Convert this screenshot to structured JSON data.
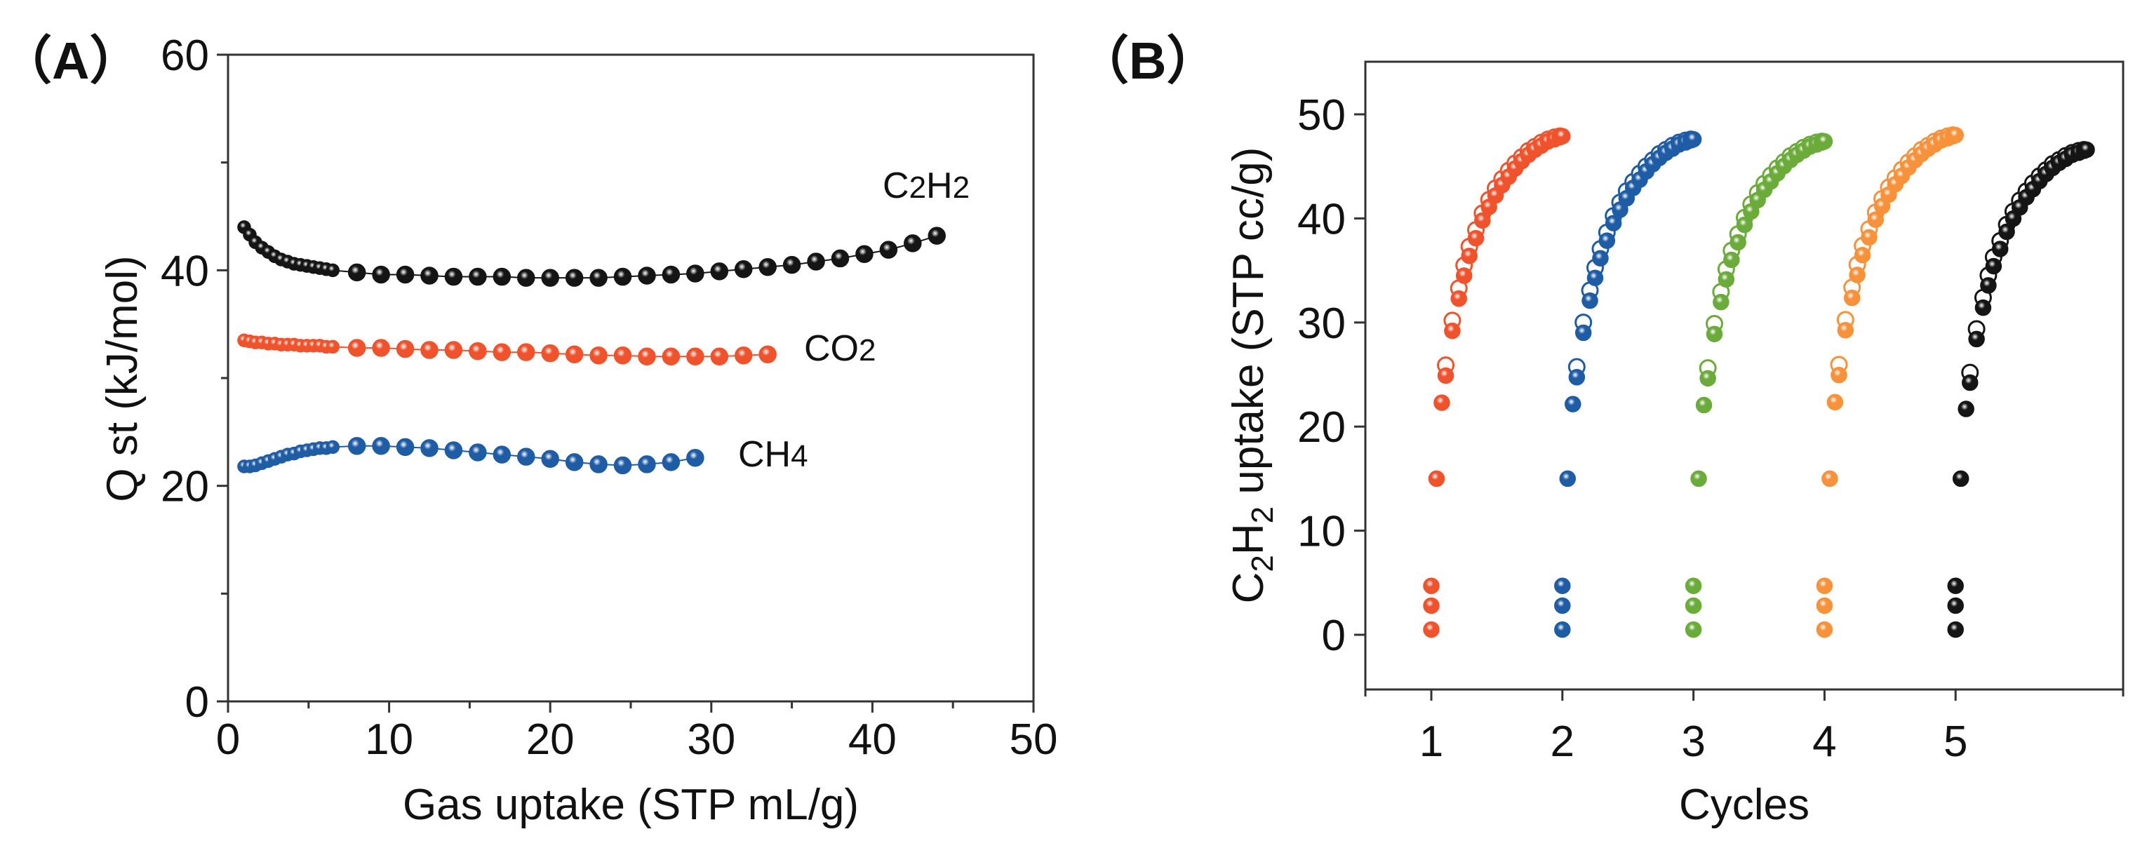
{
  "chart_data": [
    {
      "type": "scatter",
      "panel_label": "（A）",
      "xlabel": "Gas uptake (STP mL/g)",
      "ylabel": "Q st (kJ/mol)",
      "xlim": [
        0,
        50
      ],
      "ylim": [
        0,
        60
      ],
      "xticks": [
        "0",
        "10",
        "20",
        "30",
        "40",
        "50"
      ],
      "yticks": [
        "0",
        "20",
        "40",
        "60"
      ],
      "series": [
        {
          "name": "C2H2",
          "label_main": "C",
          "label_sub1": "2",
          "label_mid": "H",
          "label_sub2": "2",
          "color": "#151515",
          "x": [
            1.0,
            1.35,
            1.7,
            2.1,
            2.5,
            2.9,
            3.3,
            3.7,
            4.1,
            4.5,
            4.9,
            5.3,
            5.7,
            6.1,
            6.5,
            8.0,
            9.5,
            11.0,
            12.5,
            14.0,
            15.5,
            17.0,
            18.5,
            20.0,
            21.5,
            23.0,
            24.5,
            26.0,
            27.5,
            29.0,
            30.5,
            32.0,
            33.5,
            35.0,
            36.5,
            38.0,
            39.5,
            41.0,
            42.5,
            44.0
          ],
          "y": [
            44.0,
            43.3,
            42.6,
            42.1,
            41.7,
            41.3,
            41.0,
            40.8,
            40.6,
            40.5,
            40.4,
            40.3,
            40.2,
            40.1,
            40.0,
            39.8,
            39.6,
            39.6,
            39.5,
            39.4,
            39.4,
            39.4,
            39.3,
            39.3,
            39.3,
            39.3,
            39.4,
            39.5,
            39.6,
            39.7,
            39.9,
            40.1,
            40.3,
            40.5,
            40.8,
            41.1,
            41.5,
            41.9,
            42.5,
            43.2
          ]
        },
        {
          "name": "CO2",
          "label_main": "CO",
          "label_sub1": "2",
          "label_mid": "",
          "label_sub2": "",
          "color": "#f0522c",
          "x": [
            1.0,
            1.35,
            1.7,
            2.1,
            2.5,
            2.9,
            3.3,
            3.7,
            4.1,
            4.5,
            4.9,
            5.3,
            5.7,
            6.1,
            6.5,
            8.0,
            9.5,
            11.0,
            12.5,
            14.0,
            15.5,
            17.0,
            18.5,
            20.0,
            21.5,
            23.0,
            24.5,
            26.0,
            27.5,
            29.0,
            30.5,
            32.0,
            33.5
          ],
          "y": [
            33.5,
            33.4,
            33.3,
            33.3,
            33.2,
            33.2,
            33.1,
            33.1,
            33.1,
            33.0,
            33.0,
            33.0,
            33.0,
            32.9,
            32.9,
            32.8,
            32.8,
            32.7,
            32.6,
            32.6,
            32.5,
            32.4,
            32.4,
            32.3,
            32.2,
            32.1,
            32.1,
            32.0,
            32.0,
            32.0,
            32.0,
            32.1,
            32.2
          ]
        },
        {
          "name": "CH4",
          "label_main": "CH",
          "label_sub1": "4",
          "label_mid": "",
          "label_sub2": "",
          "color": "#1f5ca6",
          "x": [
            1.0,
            1.35,
            1.7,
            2.1,
            2.5,
            2.9,
            3.3,
            3.7,
            4.1,
            4.5,
            4.9,
            5.3,
            5.7,
            6.1,
            6.5,
            8.0,
            9.5,
            11.0,
            12.5,
            14.0,
            15.5,
            17.0,
            18.5,
            20.0,
            21.5,
            23.0,
            24.5,
            26.0,
            27.5,
            29.0
          ],
          "y": [
            21.8,
            21.8,
            21.9,
            22.1,
            22.3,
            22.5,
            22.7,
            22.9,
            23.0,
            23.2,
            23.3,
            23.4,
            23.5,
            23.5,
            23.6,
            23.7,
            23.7,
            23.6,
            23.5,
            23.3,
            23.1,
            22.9,
            22.7,
            22.5,
            22.2,
            22.0,
            21.9,
            22.0,
            22.2,
            22.6
          ]
        }
      ]
    },
    {
      "type": "scatter",
      "panel_label": "（B）",
      "xlabel": "Cycles",
      "ylabel_parts": [
        "C",
        "2",
        "H",
        "2",
        " uptake (STP cc/g)"
      ],
      "xlim": [
        0.5,
        6.3
      ],
      "ylim": [
        -5.5,
        55
      ],
      "xticks": [
        "1",
        "2",
        "3",
        "4",
        "5"
      ],
      "yticks": [
        "0",
        "10",
        "20",
        "30",
        "40",
        "50"
      ],
      "cycle_offsets": {
        "adsorption_t": [
          0,
          0,
          0,
          0.04,
          0.08,
          0.11,
          0.16,
          0.21,
          0.25,
          0.29,
          0.34,
          0.39,
          0.44,
          0.49,
          0.54,
          0.59,
          0.64,
          0.69,
          0.74,
          0.79,
          0.84,
          0.89,
          0.94,
          0.98,
          1.0
        ],
        "adsorption_y": [
          0.5,
          2.8,
          4.7,
          15,
          22.3,
          24.9,
          29.2,
          32.3,
          34.5,
          36.4,
          38.1,
          39.8,
          41.1,
          42.2,
          43.2,
          44.0,
          44.8,
          45.5,
          46.1,
          46.6,
          47.0,
          47.4,
          47.6,
          47.8,
          47.9
        ],
        "desorption_t": [
          0.11,
          0.16,
          0.21,
          0.25,
          0.29,
          0.34,
          0.39,
          0.44,
          0.49,
          0.54,
          0.59,
          0.64,
          0.69,
          0.74,
          0.79,
          0.84,
          0.89,
          0.94,
          0.98
        ],
        "desorption_y": [
          25.9,
          30.2,
          33.3,
          35.5,
          37.3,
          38.9,
          40.5,
          41.8,
          42.9,
          43.8,
          44.6,
          45.3,
          45.9,
          46.5,
          46.9,
          47.3,
          47.6,
          47.8,
          47.9
        ]
      },
      "series": [
        {
          "name": "Cycle 1",
          "cycle": 1,
          "color": "#f0522c",
          "max_uptake": 47.9
        },
        {
          "name": "Cycle 2",
          "cycle": 2,
          "color": "#1f5ca6",
          "max_uptake": 47.6
        },
        {
          "name": "Cycle 3",
          "cycle": 3,
          "color": "#6aab3a",
          "max_uptake": 47.4
        },
        {
          "name": "Cycle 4",
          "cycle": 4,
          "color": "#f7913a",
          "max_uptake": 48.0
        },
        {
          "name": "Cycle 5",
          "cycle": 5,
          "color": "#151515",
          "max_uptake": 46.6
        }
      ]
    }
  ]
}
